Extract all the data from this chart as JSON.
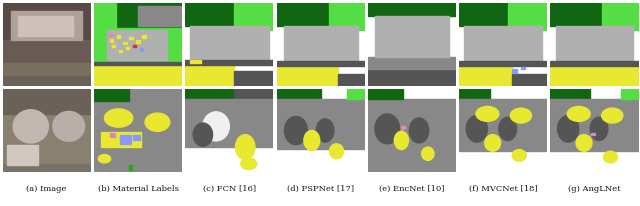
{
  "captions": [
    "(a) Image",
    "(b) Material Labels",
    "(c) FCN [16]",
    "(d) PSPNet [17]",
    "(e) EncNet [10]",
    "(f) MVCNet [18]",
    "(g) AngLNet"
  ],
  "fig_width": 6.4,
  "fig_height": 2.06,
  "caption_fontsize": 6.0,
  "background_color": "#ffffff",
  "green_bright": "#44dd44",
  "green_dark": "#1a7a1a",
  "gray_light": "#aaaaaa",
  "gray_mid": "#888888",
  "gray_dark": "#555555",
  "yellow": "#e8e830",
  "white": "#ffffff",
  "pink": "#dd99cc",
  "blue_sm": "#8888ff"
}
